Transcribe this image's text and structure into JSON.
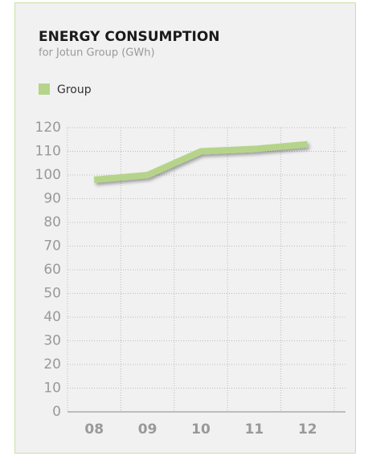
{
  "chart_data": {
    "type": "line",
    "title": "ENERGY CONSUMPTION",
    "subtitle": "for Jotun Group (GWh)",
    "categories": [
      "08",
      "09",
      "10",
      "11",
      "12"
    ],
    "series": [
      {
        "name": "Group",
        "color": "#b5d48a",
        "values": [
          98,
          100,
          110,
          111,
          113
        ]
      }
    ],
    "ylim": [
      0,
      120
    ],
    "yticks": [
      0,
      10,
      20,
      30,
      40,
      50,
      60,
      70,
      80,
      90,
      100,
      110,
      120
    ],
    "grid": true
  }
}
